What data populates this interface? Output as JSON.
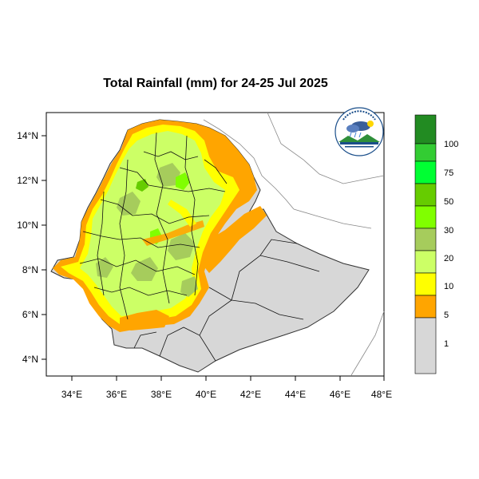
{
  "title": "Total Rainfall (mm) for 24-25 Jul 2025",
  "map": {
    "x_ticks": [
      "34°E",
      "36°E",
      "38°E",
      "40°E",
      "42°E",
      "44°E",
      "46°E",
      "48°E"
    ],
    "y_ticks": [
      "14°N",
      "12°N",
      "10°N",
      "8°N",
      "6°N",
      "4°N"
    ],
    "lon_range": [
      33,
      48
    ],
    "lat_range": [
      3.2,
      15
    ]
  },
  "legend": {
    "unit": "mm",
    "colors": [
      "#d7d7d7",
      "#ffa500",
      "#ffff00",
      "#ccff66",
      "#a6cc5c",
      "#80ff00",
      "#66cc00",
      "#00ff33",
      "#33cc33",
      "#228b22"
    ],
    "labels": [
      "1",
      "5",
      "10",
      "20",
      "30",
      "50",
      "75",
      "100"
    ]
  },
  "logo": {
    "text": "ETHIOPIAN METEOROLOGY INSTITUTE"
  }
}
